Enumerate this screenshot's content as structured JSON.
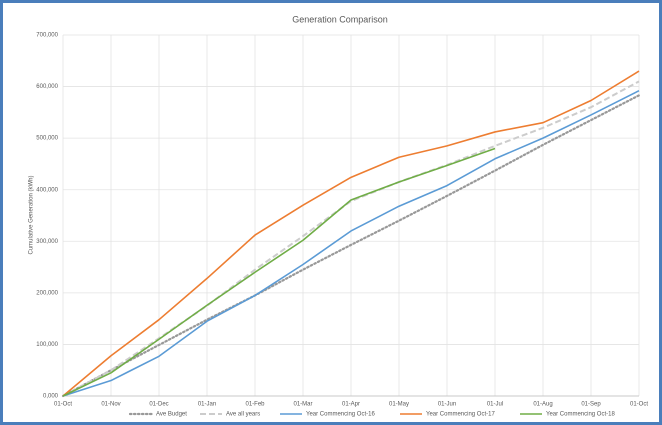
{
  "chart_data": {
    "type": "line",
    "title": "Generation Comparison",
    "y_label": "Cumulative Generation (kWh)",
    "categories": [
      "01-Oct",
      "01-Nov",
      "01-Dec",
      "01-Jan",
      "01-Feb",
      "01-Mar",
      "01-Apr",
      "01-May",
      "01-Jun",
      "01-Jul",
      "01-Aug",
      "01-Sep",
      "01-Oct"
    ],
    "ylim": [
      0,
      700000
    ],
    "yticks": [
      {
        "value": 0,
        "label": "0,000"
      },
      {
        "value": 100000,
        "label": "100,000"
      },
      {
        "value": 200000,
        "label": "200,000"
      },
      {
        "value": 300000,
        "label": "300,000"
      },
      {
        "value": 400000,
        "label": "400,000"
      },
      {
        "value": 500000,
        "label": "500,000"
      },
      {
        "value": 600000,
        "label": "600,000"
      },
      {
        "value": 700000,
        "label": "700,000"
      }
    ],
    "grid": true,
    "legend": "bottom",
    "series": [
      {
        "name": "Ave Budget",
        "color": "#999999",
        "dash": "dotted",
        "values": [
          0,
          50000,
          99000,
          148000,
          195000,
          245000,
          293000,
          340000,
          388000,
          437000,
          487000,
          535000,
          583000
        ]
      },
      {
        "name": "Ave all years",
        "color": "#cccccc",
        "dash": "dashed",
        "values": [
          0,
          50000,
          112000,
          175000,
          245000,
          310000,
          378000,
          415000,
          448000,
          485000,
          520000,
          560000,
          610000
        ]
      },
      {
        "name": "Year Commencing Oct-16",
        "color": "#5b9bd5",
        "dash": "solid",
        "values": [
          0,
          30000,
          77000,
          145000,
          195000,
          255000,
          320000,
          368000,
          408000,
          460000,
          500000,
          545000,
          592000
        ]
      },
      {
        "name": "Year Commencing Oct-17",
        "color": "#ed7d31",
        "dash": "solid",
        "values": [
          0,
          78000,
          148000,
          228000,
          312000,
          370000,
          424000,
          463000,
          485000,
          512000,
          530000,
          573000,
          630000
        ]
      },
      {
        "name": "Year Commencing Oct-18",
        "color": "#70ad47",
        "dash": "solid",
        "values": [
          0,
          45000,
          110000,
          176000,
          240000,
          302000,
          380000,
          415000,
          447000,
          480000,
          null,
          null,
          null
        ]
      }
    ]
  }
}
